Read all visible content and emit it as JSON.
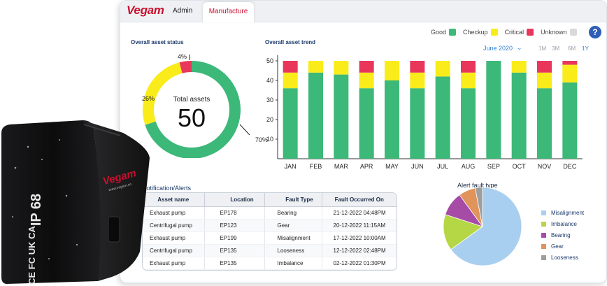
{
  "header": {
    "brand": "Vegam",
    "tabs": [
      {
        "label": "Admin",
        "active": false
      },
      {
        "label": "Manufacture",
        "active": true
      }
    ]
  },
  "status_legend": [
    {
      "label": "Good",
      "color": "#3cb878"
    },
    {
      "label": "Checkup",
      "color": "#f9ec1a"
    },
    {
      "label": "Critical",
      "color": "#e8375a"
    },
    {
      "label": "Unknown",
      "color": "#d9d9d9"
    }
  ],
  "help_label": "?",
  "asset_status": {
    "title": "Overall asset status",
    "total_label": "Total assets",
    "total_value": "50",
    "pct_labels": [
      "70%",
      "26%",
      "4%"
    ],
    "chart_data": {
      "type": "pie",
      "categories": [
        "Good",
        "Checkup",
        "Critical"
      ],
      "values": [
        70,
        26,
        4
      ],
      "colors": [
        "#3cb878",
        "#f9ec1a",
        "#e8375a"
      ]
    }
  },
  "asset_trend": {
    "title": "Overall asset trend",
    "period": "June 2020",
    "ranges": [
      "1M",
      "3M",
      "6M",
      "1Y"
    ],
    "active_range": "1Y",
    "chart_data": {
      "type": "bar",
      "stacked": true,
      "categories": [
        "JAN",
        "FEB",
        "MAR",
        "APR",
        "MAY",
        "JUN",
        "JUL",
        "AUG",
        "SEP",
        "OCT",
        "NOV",
        "DEC"
      ],
      "yticks": [
        "10",
        "20",
        "30",
        "40",
        "50"
      ],
      "ylim": [
        0,
        50
      ],
      "series": [
        {
          "name": "Good",
          "color": "#3cb878",
          "values": [
            36,
            44,
            43,
            36,
            40,
            36,
            42,
            36,
            50,
            44,
            36,
            39
          ]
        },
        {
          "name": "Checkup",
          "color": "#f9ec1a",
          "values": [
            8,
            6,
            7,
            8,
            10,
            8,
            8,
            8,
            0,
            6,
            8,
            9
          ]
        },
        {
          "name": "Critical",
          "color": "#e8375a",
          "values": [
            6,
            0,
            0,
            6,
            0,
            6,
            0,
            6,
            0,
            0,
            6,
            2
          ]
        }
      ]
    }
  },
  "alerts": {
    "title": "Notification/Alerts",
    "columns": [
      "Asset name",
      "Location",
      "Fault Type",
      "Fault Occurred On"
    ],
    "rows": [
      [
        "Exhaust pump",
        "EP178",
        "Bearing",
        "21-12-2022  04:48PM"
      ],
      [
        "Centrifugal pump",
        "EP123",
        "Gear",
        "20-12-2022  11:15AM"
      ],
      [
        "Exhaust pump",
        "EP199",
        "Misalignment",
        "17-12-2022  10:00AM"
      ],
      [
        "Centrifugal pump",
        "EP135",
        "Looseness",
        "12-12-2022  02:48PM"
      ],
      [
        "Exhaust pump",
        "EP135",
        "Imbalance",
        "02-12-2022  01:30PM"
      ]
    ]
  },
  "fault_types": {
    "title": "Alert fault type",
    "chart_data": {
      "type": "pie",
      "categories": [
        "Misalignment",
        "Imbalance",
        "Bearing",
        "Gear",
        "Looseness"
      ],
      "values": [
        65,
        15,
        10,
        7,
        3
      ],
      "colors": [
        "#a9cff0",
        "#b5d645",
        "#a64ca6",
        "#e0935b",
        "#9e9e9e"
      ]
    }
  },
  "device": {
    "brand": "Vegam",
    "website": "www.vegam.co",
    "rating": "IP 68",
    "marks": "CE FC UK CA"
  }
}
